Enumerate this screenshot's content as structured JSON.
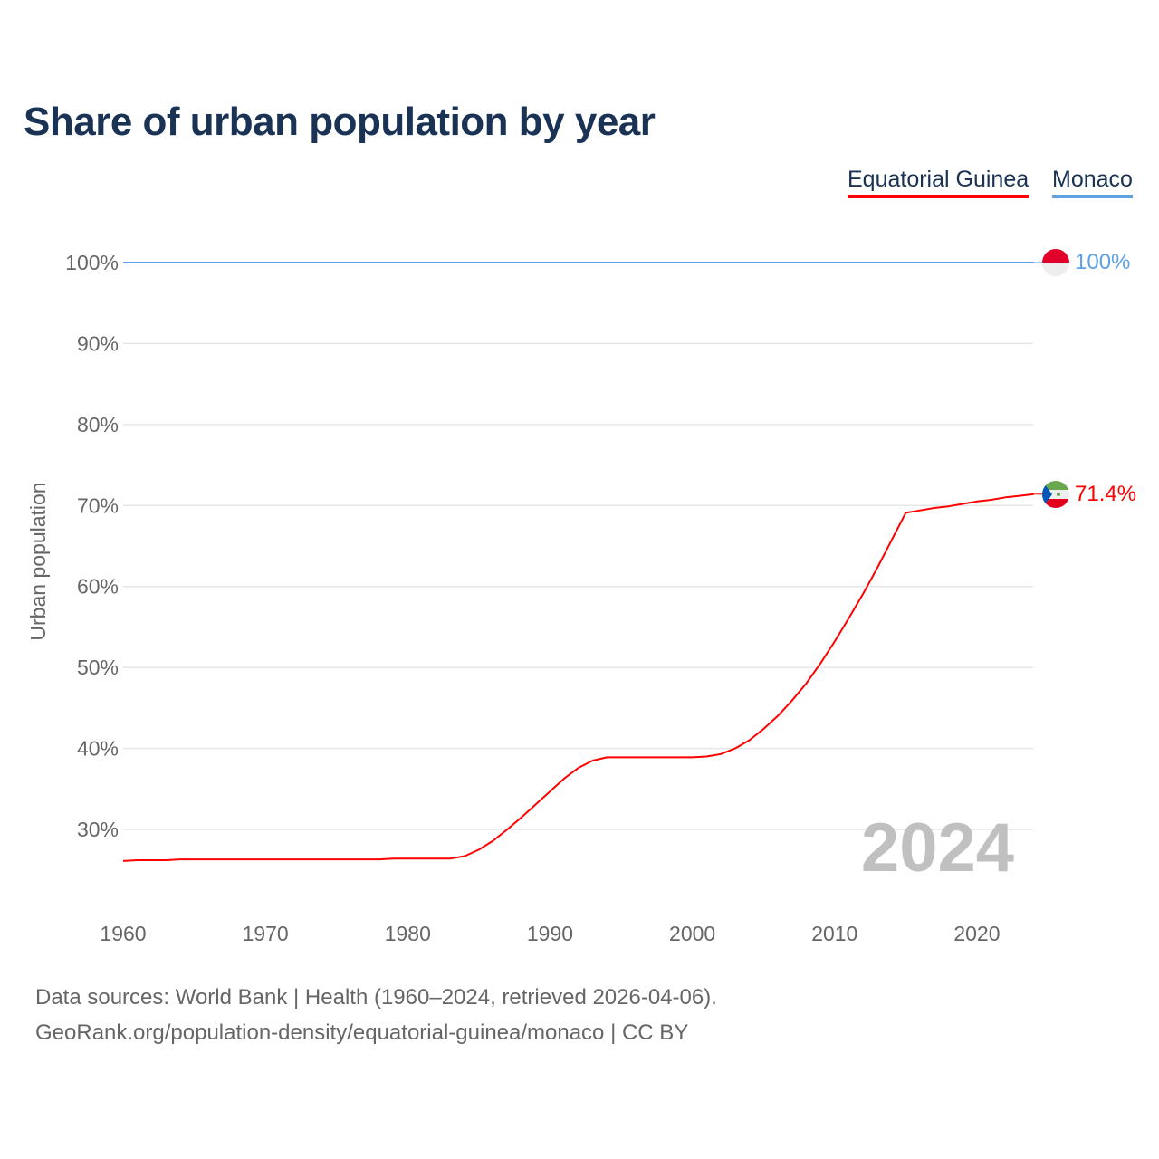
{
  "chart_data": {
    "type": "line",
    "title": "Share of urban population by year",
    "ylabel": "Urban population",
    "xlabel": "",
    "xlim": [
      1960,
      2024
    ],
    "ylim": [
      20,
      100
    ],
    "yticks": [
      30,
      40,
      50,
      60,
      70,
      80,
      90,
      100
    ],
    "ytick_labels": [
      "30%",
      "40%",
      "50%",
      "60%",
      "70%",
      "80%",
      "90%",
      "100%"
    ],
    "xticks": [
      1960,
      1970,
      1980,
      1990,
      2000,
      2010,
      2020
    ],
    "xtick_labels": [
      "1960",
      "1970",
      "1980",
      "1990",
      "2000",
      "2010",
      "2020"
    ],
    "grid": true,
    "legend_position": "top-right",
    "year_watermark": "2024",
    "series": [
      {
        "name": "Equatorial Guinea",
        "color": "#ff0000",
        "end_label": "71.4%",
        "x": [
          1960,
          1961,
          1962,
          1963,
          1964,
          1965,
          1966,
          1967,
          1968,
          1969,
          1970,
          1971,
          1972,
          1973,
          1974,
          1975,
          1976,
          1977,
          1978,
          1979,
          1980,
          1981,
          1982,
          1983,
          1984,
          1985,
          1986,
          1987,
          1988,
          1989,
          1990,
          1991,
          1992,
          1993,
          1994,
          1995,
          1996,
          1997,
          1998,
          1999,
          2000,
          2001,
          2002,
          2003,
          2004,
          2005,
          2006,
          2007,
          2008,
          2009,
          2010,
          2011,
          2012,
          2013,
          2014,
          2015,
          2016,
          2017,
          2018,
          2019,
          2020,
          2021,
          2022,
          2023,
          2024
        ],
        "values": [
          26.1,
          26.2,
          26.2,
          26.2,
          26.3,
          26.3,
          26.3,
          26.3,
          26.3,
          26.3,
          26.3,
          26.3,
          26.3,
          26.3,
          26.3,
          26.3,
          26.3,
          26.3,
          26.3,
          26.4,
          26.4,
          26.4,
          26.4,
          26.4,
          26.7,
          27.5,
          28.6,
          30.0,
          31.5,
          33.1,
          34.7,
          36.3,
          37.6,
          38.5,
          38.9,
          38.9,
          38.9,
          38.9,
          38.9,
          38.9,
          38.9,
          39.0,
          39.3,
          40.0,
          41.0,
          42.4,
          44.0,
          45.9,
          48.0,
          50.5,
          53.2,
          56.1,
          59.1,
          62.3,
          65.7,
          69.1,
          69.4,
          69.7,
          69.9,
          70.2,
          70.5,
          70.7,
          71.0,
          71.2,
          71.4
        ]
      },
      {
        "name": "Monaco",
        "color": "#5ea1e6",
        "end_label": "100%",
        "x": [
          1960,
          2024
        ],
        "values": [
          100,
          100
        ]
      }
    ]
  },
  "footer": {
    "line1": "Data sources: World Bank | Health (1960–2024, retrieved 2026-04-06).",
    "line2": "GeoRank.org/population-density/equatorial-guinea/monaco | CC BY"
  }
}
